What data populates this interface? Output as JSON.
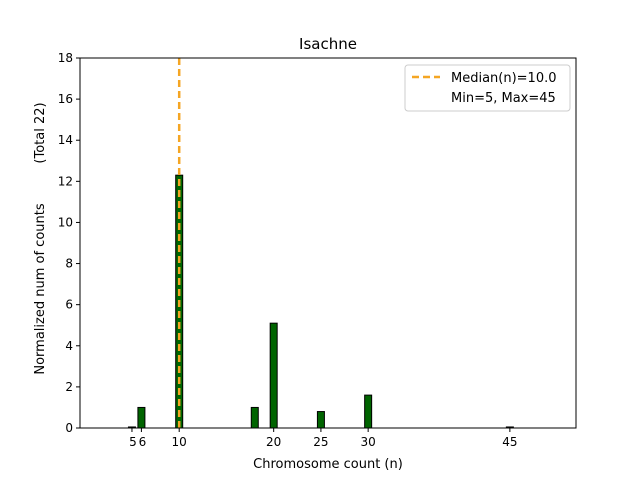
{
  "chart_data": {
    "type": "bar",
    "title": "Isachne",
    "xlabel": "Chromosome count (n)",
    "ylabel": "Normalized num of counts",
    "ylabel_secondary": "(Total 22)",
    "xlim": [
      -0.5,
      52
    ],
    "ylim": [
      0,
      18
    ],
    "x_ticks": [
      5,
      6,
      10,
      20,
      25,
      30,
      45
    ],
    "x_tick_labels": [
      "5",
      "6",
      "10",
      "20",
      "25",
      "30",
      "45"
    ],
    "y_ticks": [
      0,
      2,
      4,
      6,
      8,
      10,
      12,
      14,
      16,
      18
    ],
    "y_tick_labels": [
      "0",
      "2",
      "4",
      "6",
      "8",
      "10",
      "12",
      "14",
      "16",
      "18"
    ],
    "bars": [
      {
        "x": 5,
        "value": 0.05
      },
      {
        "x": 6,
        "value": 1.0
      },
      {
        "x": 10,
        "value": 12.3
      },
      {
        "x": 18,
        "value": 1.0
      },
      {
        "x": 20,
        "value": 5.1
      },
      {
        "x": 25,
        "value": 0.8
      },
      {
        "x": 30,
        "value": 1.6
      },
      {
        "x": 45,
        "value": 0.05
      }
    ],
    "median_line": {
      "x": 10,
      "label": "Median(n)=10.0",
      "color": "#f5a623"
    },
    "legend": {
      "placement": "top-right",
      "entries": [
        "Median(n)=10.0",
        "Min=5, Max=45"
      ]
    },
    "bar_color": "#006400",
    "bar_edge_color": "#000000",
    "grid": false
  }
}
